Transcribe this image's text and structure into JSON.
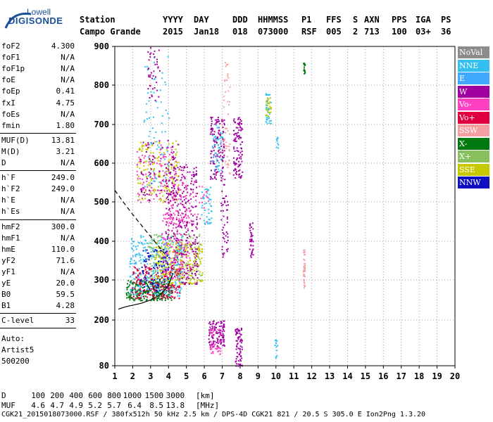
{
  "logo": {
    "top": "Lowell",
    "main": "DIGISONDE"
  },
  "header": {
    "row1": [
      {
        "text": "Station"
      },
      {
        "text": "YYYY"
      },
      {
        "text": "DAY"
      },
      {
        "text": "DDD"
      },
      {
        "text": "HHMMSS"
      },
      {
        "text": "P1"
      },
      {
        "text": "FFS"
      },
      {
        "text": "S"
      },
      {
        "text": "AXN"
      },
      {
        "text": "PPS"
      },
      {
        "text": "IGA"
      },
      {
        "text": "PS"
      }
    ],
    "row2": [
      {
        "text": "Campo Grande"
      },
      {
        "text": "2015"
      },
      {
        "text": "Jan18"
      },
      {
        "text": "018"
      },
      {
        "text": "073000"
      },
      {
        "text": "RSF"
      },
      {
        "text": "005"
      },
      {
        "text": "2"
      },
      {
        "text": "713"
      },
      {
        "text": "100"
      },
      {
        "text": "03+"
      },
      {
        "text": "36"
      }
    ]
  },
  "params": {
    "group1": [
      {
        "k": "foF2",
        "v": "4.300"
      },
      {
        "k": "foF1",
        "v": "N/A"
      },
      {
        "k": "foF1p",
        "v": "N/A"
      },
      {
        "k": "foE",
        "v": "N/A"
      },
      {
        "k": "foEp",
        "v": "0.41"
      },
      {
        "k": "fxI",
        "v": "4.75"
      },
      {
        "k": "foEs",
        "v": "N/A"
      },
      {
        "k": "fmin",
        "v": "1.80"
      }
    ],
    "group2": [
      {
        "k": "MUF(D)",
        "v": "13.81"
      },
      {
        "k": "M(D)",
        "v": "3.21"
      },
      {
        "k": "D",
        "v": "N/A"
      }
    ],
    "group3": [
      {
        "k": "h`F",
        "v": "249.0"
      },
      {
        "k": "h`F2",
        "v": "249.0"
      },
      {
        "k": "h`E",
        "v": "N/A"
      },
      {
        "k": "h`Es",
        "v": "N/A"
      }
    ],
    "group4": [
      {
        "k": "hmF2",
        "v": "300.0"
      },
      {
        "k": "hmF1",
        "v": "N/A"
      },
      {
        "k": "hmE",
        "v": "110.0"
      },
      {
        "k": "yF2",
        "v": "71.6"
      },
      {
        "k": "yF1",
        "v": "N/A"
      },
      {
        "k": "yE",
        "v": "20.0"
      },
      {
        "k": "B0",
        "v": "59.5"
      },
      {
        "k": "B1",
        "v": "4.28"
      }
    ],
    "group5": [
      {
        "k": "C-level",
        "v": "33"
      }
    ],
    "auto": [
      "Auto:",
      "Artist5",
      "500200"
    ]
  },
  "legend": [
    {
      "label": "NoVal",
      "color": "#8c8c8c"
    },
    {
      "label": "NNE",
      "color": "#33c0f0"
    },
    {
      "label": "E",
      "color": "#40a8ff"
    },
    {
      "label": "W",
      "color": "#a000a0"
    },
    {
      "label": "Vo-",
      "color": "#ff40c0"
    },
    {
      "label": "Vo+",
      "color": "#e00040"
    },
    {
      "label": "SSW",
      "color": "#f4a0a0"
    },
    {
      "label": "X-",
      "color": "#007a10"
    },
    {
      "label": "X+",
      "color": "#88c060"
    },
    {
      "label": "SSE",
      "color": "#c8c800"
    },
    {
      "label": "NNW",
      "color": "#1010c0"
    }
  ],
  "bottom": {
    "d_label": "D",
    "d_values": [
      "100",
      "200",
      "400",
      "600",
      "800",
      "1000",
      "1500",
      "3000"
    ],
    "d_unit": "[km]",
    "muf_label": "MUF",
    "muf_values": [
      "4.6",
      "4.7",
      "4.9",
      "5.2",
      "5.7",
      "6.4",
      "8.5",
      "13.8"
    ],
    "muf_unit": "[MHz]",
    "footer": "CGK21_2015018073000.RSF / 380fx512h 50 kHz 2.5 km / DPS-4D CGK21 821 / 20.5 S 305.0 E Ion2Png 1.3.20"
  },
  "chart_data": {
    "type": "scatter",
    "xlim": [
      1,
      20
    ],
    "ylim": [
      80,
      900
    ],
    "x_ticks": [
      "1",
      "2",
      "3",
      "4",
      "5",
      "6",
      "7",
      "8",
      "9",
      "10",
      "11",
      "12",
      "13",
      "14",
      "15",
      "16",
      "17",
      "18",
      "19",
      "20"
    ],
    "y_ticks": [
      "80",
      "200",
      "300",
      "400",
      "500",
      "600",
      "700",
      "800",
      "900"
    ],
    "y_tick_values": [
      80,
      200,
      300,
      400,
      500,
      600,
      700,
      800,
      900
    ],
    "grid": true,
    "series": [
      {
        "kind": "solid-line",
        "color": "#000000",
        "x": [
          1.2,
          1.6,
          2.0,
          2.5,
          3.0,
          3.5,
          3.9,
          4.1,
          4.25
        ],
        "y": [
          227,
          233,
          237,
          242,
          250,
          262,
          280,
          298,
          318
        ]
      },
      {
        "kind": "dashed-line",
        "color": "#000000",
        "x": [
          1.0,
          1.5,
          2.0,
          2.5,
          3.0,
          3.4,
          3.7,
          3.95
        ],
        "y": [
          530,
          498,
          468,
          440,
          412,
          390,
          372,
          360
        ]
      }
    ],
    "point_clusters": [
      {
        "color": "#007a10",
        "x": [
          1.6,
          4.2
        ],
        "y": [
          250,
          300
        ],
        "n": 260
      },
      {
        "color": "#33c0f0",
        "x": [
          1.8,
          4.8
        ],
        "y": [
          260,
          420
        ],
        "n": 320
      },
      {
        "color": "#e00040",
        "x": [
          1.9,
          4.6
        ],
        "y": [
          255,
          340
        ],
        "n": 200
      },
      {
        "color": "#c8c800",
        "x": [
          3.2,
          5.9
        ],
        "y": [
          290,
          400
        ],
        "n": 260
      },
      {
        "color": "#88c060",
        "x": [
          2.8,
          5.8
        ],
        "y": [
          300,
          420
        ],
        "n": 160
      },
      {
        "color": "#a000a0",
        "x": [
          3.8,
          5.6
        ],
        "y": [
          290,
          600
        ],
        "n": 320
      },
      {
        "color": "#ff40c0",
        "x": [
          3.6,
          5.2
        ],
        "y": [
          300,
          480
        ],
        "n": 140
      },
      {
        "color": "#1010c0",
        "x": [
          2.4,
          4.0
        ],
        "y": [
          270,
          380
        ],
        "n": 90
      },
      {
        "color": "#c8c800",
        "x": [
          2.2,
          4.6
        ],
        "y": [
          500,
          660
        ],
        "n": 160
      },
      {
        "color": "#ff40c0",
        "x": [
          2.2,
          4.4
        ],
        "y": [
          500,
          650
        ],
        "n": 110
      },
      {
        "color": "#a000a0",
        "x": [
          2.4,
          4.5
        ],
        "y": [
          500,
          660
        ],
        "n": 90
      },
      {
        "color": "#33c0f0",
        "x": [
          2.6,
          4.0
        ],
        "y": [
          540,
          880
        ],
        "n": 70
      },
      {
        "color": "#a000a0",
        "x": [
          2.8,
          3.5
        ],
        "y": [
          760,
          900
        ],
        "n": 40
      },
      {
        "color": "#ff40c0",
        "x": [
          4.0,
          6.2
        ],
        "y": [
          450,
          560
        ],
        "n": 60
      },
      {
        "color": "#33c0f0",
        "x": [
          5.8,
          6.4
        ],
        "y": [
          440,
          540
        ],
        "n": 40
      },
      {
        "color": "#a000a0",
        "x": [
          6.3,
          7.1
        ],
        "y": [
          560,
          720
        ],
        "n": 130
      },
      {
        "color": "#33c0f0",
        "x": [
          6.4,
          7.0
        ],
        "y": [
          580,
          700
        ],
        "n": 50
      },
      {
        "color": "#a000a0",
        "x": [
          6.9,
          7.3
        ],
        "y": [
          360,
          560
        ],
        "n": 50
      },
      {
        "color": "#a000a0",
        "x": [
          7.6,
          8.1
        ],
        "y": [
          560,
          720
        ],
        "n": 110
      },
      {
        "color": "#f4a0a0",
        "x": [
          7.0,
          7.4
        ],
        "y": [
          560,
          860
        ],
        "n": 50
      },
      {
        "color": "#a000a0",
        "x": [
          8.5,
          8.7
        ],
        "y": [
          360,
          450
        ],
        "n": 35
      },
      {
        "color": "#33c0f0",
        "x": [
          9.4,
          9.7
        ],
        "y": [
          700,
          780
        ],
        "n": 40
      },
      {
        "color": "#c8c800",
        "x": [
          9.4,
          9.7
        ],
        "y": [
          720,
          770
        ],
        "n": 25
      },
      {
        "color": "#33c0f0",
        "x": [
          10.0,
          10.1
        ],
        "y": [
          630,
          680
        ],
        "n": 10
      },
      {
        "color": "#f4a0a0",
        "x": [
          11.5,
          11.6
        ],
        "y": [
          280,
          380
        ],
        "n": 40
      },
      {
        "color": "#007a10",
        "x": [
          11.5,
          11.6
        ],
        "y": [
          820,
          860
        ],
        "n": 15
      },
      {
        "color": "#a000a0",
        "x": [
          6.2,
          7.1
        ],
        "y": [
          130,
          200
        ],
        "n": 110
      },
      {
        "color": "#ff40c0",
        "x": [
          6.3,
          6.9
        ],
        "y": [
          110,
          180
        ],
        "n": 40
      },
      {
        "color": "#a000a0",
        "x": [
          7.7,
          8.1
        ],
        "y": [
          80,
          180
        ],
        "n": 70
      },
      {
        "color": "#33c0f0",
        "x": [
          9.9,
          10.1
        ],
        "y": [
          100,
          150
        ],
        "n": 12
      }
    ]
  }
}
